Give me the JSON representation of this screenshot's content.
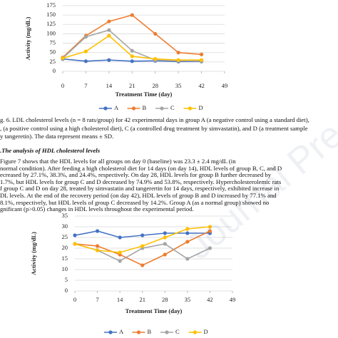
{
  "chart_data": [
    {
      "type": "line",
      "y_label": "Activity (mg/dL)",
      "x_label": "Treatment Time (day)",
      "x": [
        0,
        7,
        14,
        21,
        28,
        35,
        42
      ],
      "xlim": [
        0,
        49
      ],
      "xticks": [
        0,
        7,
        14,
        21,
        28,
        35,
        42,
        49
      ],
      "ylim": [
        0,
        175
      ],
      "yticks": [
        0,
        25,
        50,
        75,
        100,
        125,
        150,
        175
      ],
      "grid": true,
      "legend": "bottom",
      "series": [
        {
          "name": "A",
          "color": "#4472c4",
          "values": [
            33,
            27,
            30,
            27,
            28,
            26,
            26
          ]
        },
        {
          "name": "B",
          "color": "#ed7d31",
          "values": [
            37,
            95,
            133,
            150,
            100,
            50,
            45
          ]
        },
        {
          "name": "C",
          "color": "#a5a5a5",
          "values": [
            35,
            92,
            110,
            55,
            30,
            28,
            27
          ]
        },
        {
          "name": "D",
          "color": "#ffc000",
          "values": [
            35,
            53,
            95,
            40,
            33,
            30,
            30
          ]
        }
      ]
    },
    {
      "type": "line",
      "y_label": "Activity (mg/dL)",
      "x_label": "Treatment Time (day)",
      "x": [
        0,
        7,
        14,
        21,
        28,
        35,
        42
      ],
      "xlim": [
        0,
        49
      ],
      "xticks": [
        0,
        7,
        14,
        21,
        28,
        35,
        42,
        49
      ],
      "ylim": [
        0,
        35
      ],
      "yticks": [
        0,
        5,
        10,
        15,
        20,
        25,
        30,
        35
      ],
      "grid": true,
      "legend": "bottom",
      "series": [
        {
          "name": "A",
          "color": "#4472c4",
          "values": [
            26,
            28,
            25,
            26,
            27,
            27,
            27
          ]
        },
        {
          "name": "B",
          "color": "#ed7d31",
          "values": [
            22,
            21,
            17,
            12,
            17,
            23,
            28
          ]
        },
        {
          "name": "C",
          "color": "#a5a5a5",
          "values": [
            22,
            19,
            14,
            20,
            22,
            15,
            20
          ]
        },
        {
          "name": "D",
          "color": "#ffc000",
          "values": [
            22,
            19,
            18,
            21,
            25,
            29,
            30
          ]
        }
      ]
    }
  ],
  "caption": [
    "g. 6. LDL cholesterol levels (n = 8 rats/group) for 42 experimental days in group A (a negative control using a standard diet),",
    ", (a positive control using a high cholesterol diet), C (a controlled drug treatment by simvastatin), and D (a treatment sample",
    "y tangeretin). The data represent means ± SD."
  ],
  "heading": ".The analysis of HDL cholesterol levels",
  "paragraph": [
    "      Figure 7 shows that the HDL levels for all groups on day 0 (baseline) was 23.3 ± 2.4 mg/dL (in",
    "normal condition). After feeding a high cholesterol diet for 14 days (on day 14), HDL levels of group B, C, and D",
    "ecreased by 27.1%, 38.3%, and 24.4%, respectively. On day 28, HDL levels for group B further decreased by",
    "1.7%, but HDL levels for group C and D decreased by 74.9% and 53.8%, respectively. Hypercholesterolemic rats",
    "f group C and D on day 28, treated by simvastatin and tangerertin for 14 days, respectively, exhibited increase in",
    "DL levels. At the end of the recovery period (on day 42), HDL levels of group B and D increased by 77.1% and",
    "8.1%, respectively, but HDL levels of group C decreased by 14.2%. Group A (as a normal group) showed no",
    "gnificant (p>0.05) changes in HDL levels throughout the experimental period."
  ],
  "watermark": "Journal Pre-proofs"
}
